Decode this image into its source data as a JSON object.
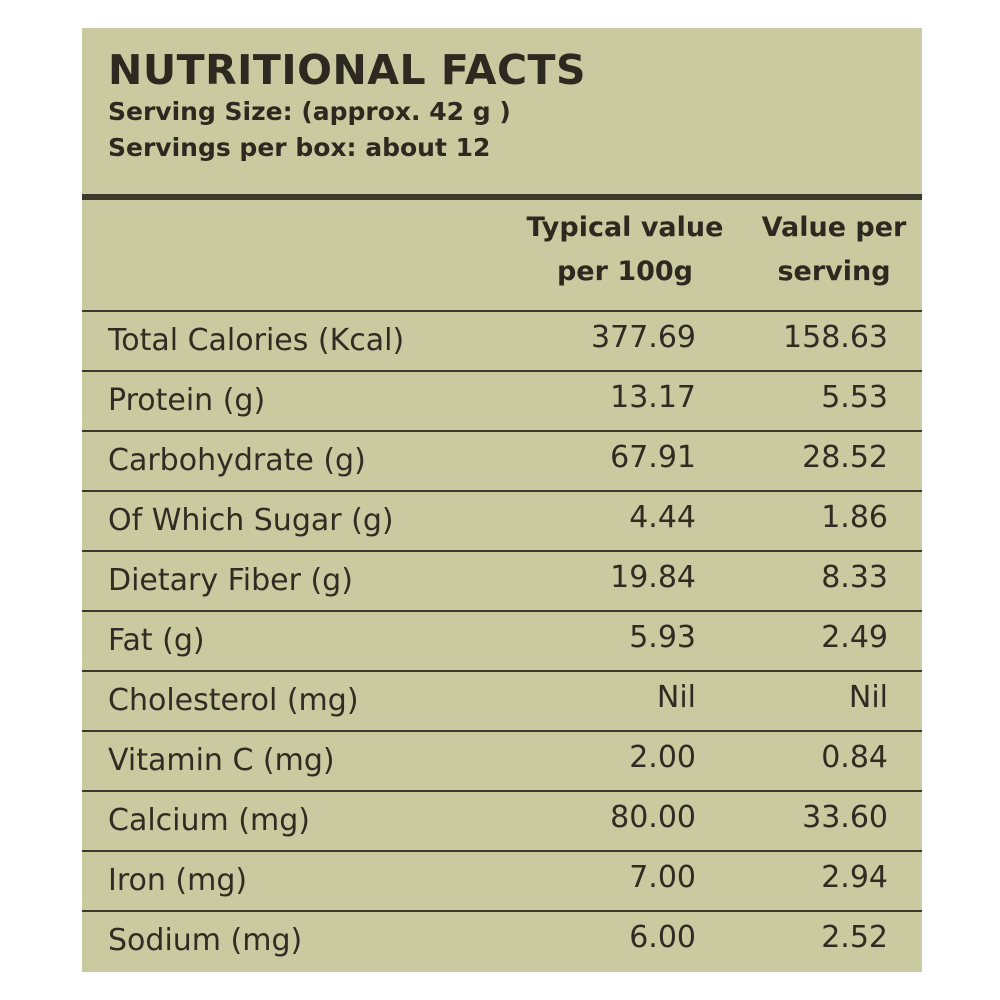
{
  "title": "NUTRITIONAL FACTS",
  "serving_size": "Serving Size: (approx. 42 g )",
  "servings_per_box": "Servings per box: about 12",
  "columns": {
    "per_100g": [
      "Typical value",
      "per 100g"
    ],
    "per_serving": [
      "Value per",
      "serving"
    ]
  },
  "rows": [
    {
      "name": "Total Calories (Kcal)",
      "per_100g": "377.69",
      "per_serving": "158.63"
    },
    {
      "name": "Protein (g)",
      "per_100g": "13.17",
      "per_serving": "5.53"
    },
    {
      "name": "Carbohydrate (g)",
      "per_100g": "67.91",
      "per_serving": "28.52"
    },
    {
      "name": "Of Which Sugar (g)",
      "per_100g": "4.44",
      "per_serving": "1.86"
    },
    {
      "name": "Dietary Fiber (g)",
      "per_100g": "19.84",
      "per_serving": "8.33"
    },
    {
      "name": "Fat (g)",
      "per_100g": "5.93",
      "per_serving": "2.49"
    },
    {
      "name": "Cholesterol (mg)",
      "per_100g": "Nil",
      "per_serving": "Nil"
    },
    {
      "name": "Vitamin C (mg)",
      "per_100g": "2.00",
      "per_serving": "0.84"
    },
    {
      "name": "Calcium (mg)",
      "per_100g": "80.00",
      "per_serving": "33.60"
    },
    {
      "name": "Iron (mg)",
      "per_100g": "7.00",
      "per_serving": "2.94"
    },
    {
      "name": "Sodium (mg)",
      "per_100g": "6.00",
      "per_serving": "2.52"
    }
  ],
  "colors": {
    "panel_background": "#c9caa0",
    "text": "#2e2c22",
    "rules": "#3b3a2c"
  }
}
